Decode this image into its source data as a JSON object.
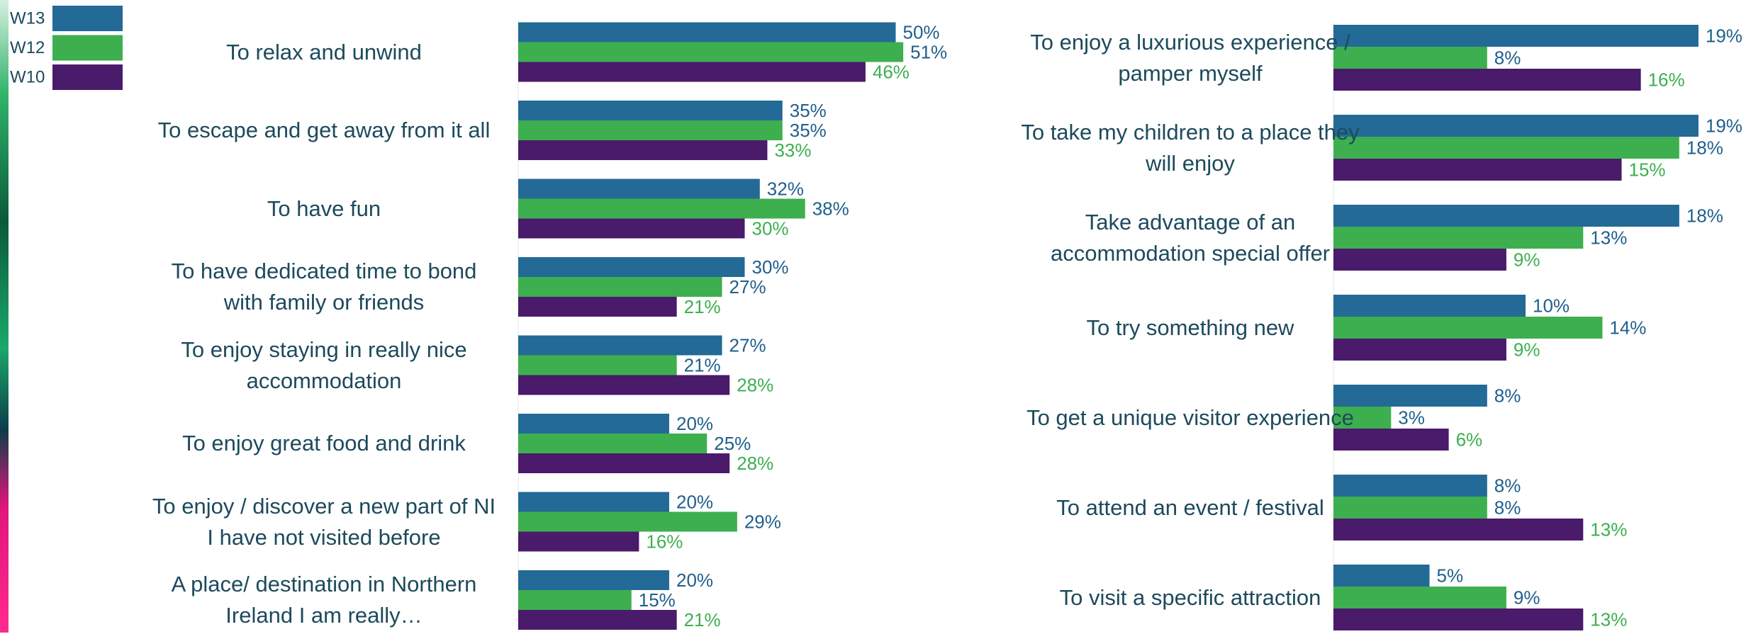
{
  "chart_data": [
    {
      "type": "bar",
      "orientation": "horizontal",
      "categories": [
        "To relax and unwind",
        "To escape and get away from it all",
        "To have fun",
        "To have dedicated time to bond with family or friends",
        "To enjoy staying in really nice accommodation",
        "To enjoy great food and drink",
        "To enjoy / discover a new part of NI I have not visited before",
        "A place/ destination in Northern Ireland I am really…"
      ],
      "series": [
        {
          "name": "W13",
          "color": "#236a96",
          "label_color": "#1f5f8b",
          "values": [
            50,
            35,
            32,
            30,
            27,
            20,
            20,
            20
          ],
          "value_labels": [
            "50%",
            "35%",
            "32%",
            "30%",
            "27%",
            "20%",
            "20%",
            "20%"
          ]
        },
        {
          "name": "W12",
          "color": "#3daf4f",
          "label_color": "#1f5f8b",
          "values": [
            51,
            35,
            38,
            27,
            21,
            25,
            29,
            15
          ],
          "value_labels": [
            "51%",
            "35%",
            "38%",
            "27%",
            "21%",
            "25%",
            "29%",
            "15%"
          ]
        },
        {
          "name": "W10",
          "color": "#4a1a6b",
          "label_color": "#3daf4f",
          "values": [
            46,
            33,
            30,
            21,
            28,
            28,
            16,
            21
          ],
          "value_labels": [
            "46%",
            "33%",
            "30%",
            "21%",
            "28%",
            "28%",
            "16%",
            "21%"
          ]
        }
      ],
      "xlim": [
        0,
        60
      ],
      "legend": "top-left"
    },
    {
      "type": "bar",
      "orientation": "horizontal",
      "categories": [
        "To enjoy a luxurious experience / pamper myself",
        "To take my children to a place they will enjoy",
        "Take advantage of an accommodation special offer",
        "To try something new",
        "To get a unique visitor experience",
        "To attend an event / festival",
        "To visit a specific attraction"
      ],
      "series": [
        {
          "color": "#236a96",
          "label_color": "#1f5f8b",
          "values": [
            19,
            19,
            18,
            10,
            8,
            8,
            5
          ],
          "value_labels": [
            "19%",
            "19%",
            "18%",
            "10%",
            "8%",
            "8%",
            "5%"
          ]
        },
        {
          "color": "#3daf4f",
          "label_color": "#1f5f8b",
          "values": [
            8,
            18,
            13,
            14,
            3,
            8,
            9
          ],
          "value_labels": [
            "8%",
            "18%",
            "13%",
            "14%",
            "3%",
            "8%",
            "9%"
          ]
        },
        {
          "color": "#4a1a6b",
          "label_color": "#3daf4f",
          "values": [
            16,
            15,
            9,
            9,
            6,
            13,
            13
          ],
          "value_labels": [
            "16%",
            "15%",
            "9%",
            "9%",
            "6%",
            "13%",
            "13%"
          ]
        }
      ],
      "xlim": [
        0,
        20
      ]
    }
  ]
}
